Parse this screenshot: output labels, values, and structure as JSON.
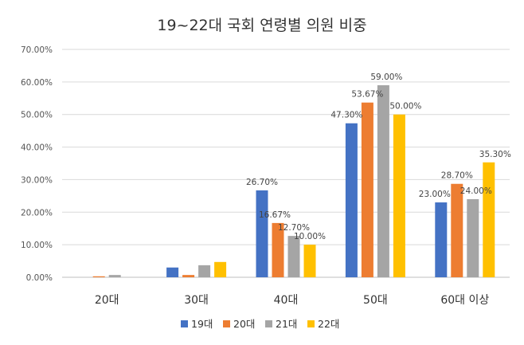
{
  "chart_data": {
    "type": "bar",
    "title": "19~22대 국회 연령별 의원 비중",
    "xlabel": "",
    "ylabel": "",
    "categories": [
      "20대",
      "30대",
      "40대",
      "50대",
      "60대 이상"
    ],
    "ylim": [
      0,
      70
    ],
    "yticks": [
      "0.00%",
      "10.00%",
      "20.00%",
      "30.00%",
      "40.00%",
      "50.00%",
      "60.00%",
      "70.00%"
    ],
    "grid": true,
    "legend": "bottom",
    "series": [
      {
        "name": "19대",
        "color": "#4472C4",
        "values": [
          0.0,
          3.0,
          26.7,
          47.3,
          23.0
        ],
        "labels": [
          "",
          "",
          "26.70%",
          "47.30%",
          "23.00%"
        ]
      },
      {
        "name": "20대",
        "color": "#ED7D31",
        "values": [
          0.3,
          0.7,
          16.67,
          53.67,
          28.7
        ],
        "labels": [
          "",
          "",
          "16.67%",
          "53.67%",
          "28.70%"
        ]
      },
      {
        "name": "21대",
        "color": "#A5A5A5",
        "values": [
          0.7,
          3.7,
          12.7,
          59.0,
          24.0
        ],
        "labels": [
          "",
          "",
          "12.70%",
          "59.00%",
          "24.00%"
        ]
      },
      {
        "name": "22대",
        "color": "#FFC000",
        "values": [
          0.0,
          4.7,
          10.0,
          50.0,
          35.3
        ],
        "labels": [
          "",
          "",
          "10.00%",
          "50.00%",
          "35.30%"
        ]
      }
    ]
  }
}
